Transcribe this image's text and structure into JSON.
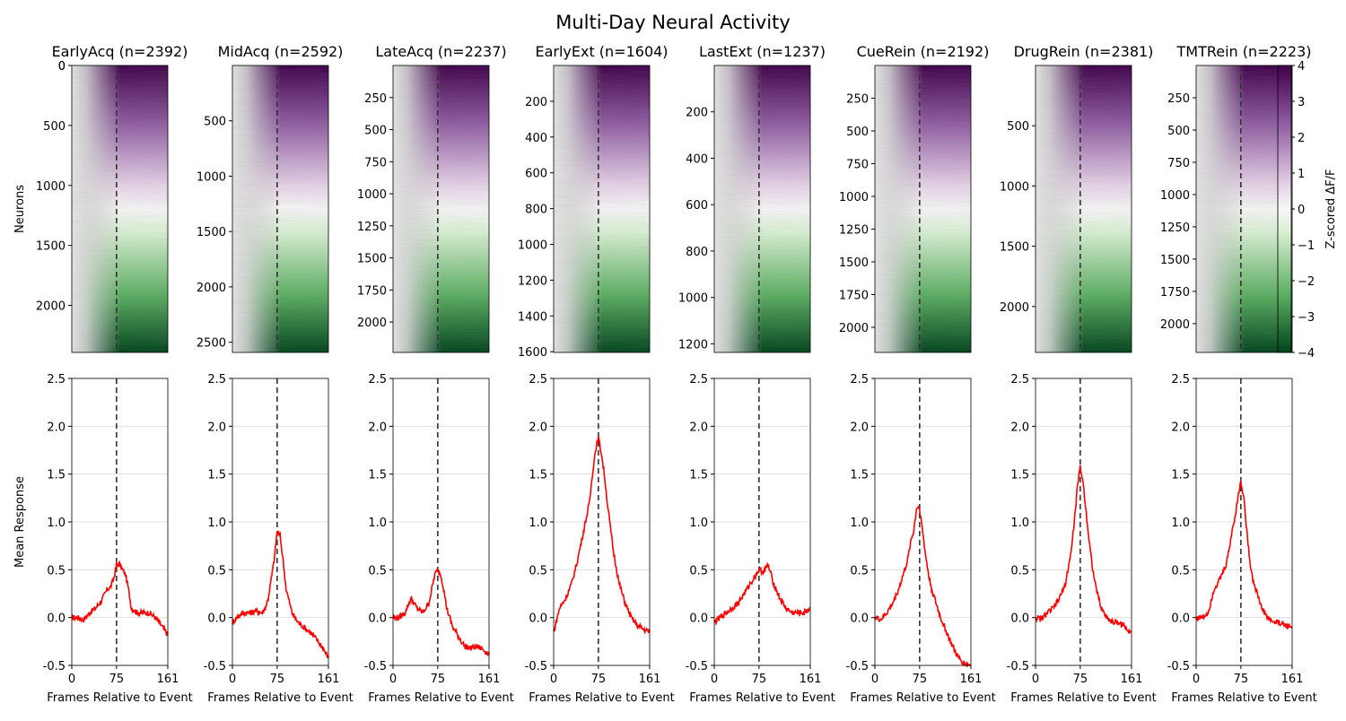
{
  "figure": {
    "title": "Multi-Day Neural Activity",
    "colorbar": {
      "label": "Z-scored ΔF/F",
      "ticks": [
        -4,
        -3,
        -2,
        -1,
        0,
        1,
        2,
        3,
        4
      ],
      "range": [
        -4,
        4
      ],
      "colormap": "PRGn"
    },
    "heatmap_ylabel": "Neurons",
    "line_ylabel": "Mean Response",
    "xlabel": "Frames Relative to Event",
    "line_color": "#ff0000",
    "event_line_color": "#333333"
  },
  "chart_data": [
    {
      "type": "heatmap",
      "title": "EarlyAcq (n=2392)",
      "n": 2392,
      "frames": [
        0,
        161
      ],
      "event_frame": 75,
      "yticks": [
        0,
        500,
        1000,
        1500,
        2000
      ]
    },
    {
      "type": "heatmap",
      "title": "MidAcq (n=2592)",
      "n": 2592,
      "frames": [
        0,
        161
      ],
      "event_frame": 75,
      "yticks": [
        500,
        1000,
        1500,
        2000,
        2500
      ]
    },
    {
      "type": "heatmap",
      "title": "LateAcq (n=2237)",
      "n": 2237,
      "frames": [
        0,
        161
      ],
      "event_frame": 75,
      "yticks": [
        250,
        500,
        750,
        1000,
        1250,
        1500,
        1750,
        2000
      ]
    },
    {
      "type": "heatmap",
      "title": "EarlyExt (n=1604)",
      "n": 1604,
      "frames": [
        0,
        161
      ],
      "event_frame": 75,
      "yticks": [
        200,
        400,
        600,
        800,
        1000,
        1200,
        1400,
        1600
      ]
    },
    {
      "type": "heatmap",
      "title": "LastExt (n=1237)",
      "n": 1237,
      "frames": [
        0,
        161
      ],
      "event_frame": 75,
      "yticks": [
        200,
        400,
        600,
        800,
        1000,
        1200
      ]
    },
    {
      "type": "heatmap",
      "title": "CueRein (n=2192)",
      "n": 2192,
      "frames": [
        0,
        161
      ],
      "event_frame": 75,
      "yticks": [
        250,
        500,
        750,
        1000,
        1250,
        1500,
        1750,
        2000
      ]
    },
    {
      "type": "heatmap",
      "title": "DrugRein (n=2381)",
      "n": 2381,
      "frames": [
        0,
        161
      ],
      "event_frame": 75,
      "yticks": [
        500,
        1000,
        1500,
        2000
      ]
    },
    {
      "type": "heatmap",
      "title": "TMTRein (n=2223)",
      "n": 2223,
      "frames": [
        0,
        161
      ],
      "event_frame": 75,
      "yticks": [
        250,
        500,
        750,
        1000,
        1250,
        1500,
        1750,
        2000
      ]
    },
    {
      "type": "line",
      "xlim": [
        0,
        161
      ],
      "ylim": [
        -0.5,
        2.5
      ],
      "xticks": [
        0,
        75,
        161
      ],
      "yticks": [
        -0.5,
        0.0,
        0.5,
        1.0,
        1.5,
        2.0,
        2.5
      ],
      "grid": "y",
      "event_frame": 75,
      "x": [
        0,
        10,
        20,
        30,
        40,
        50,
        60,
        65,
        70,
        75,
        80,
        85,
        90,
        95,
        100,
        110,
        120,
        130,
        140,
        150,
        161
      ],
      "y": [
        0.0,
        0.0,
        -0.02,
        0.05,
        0.1,
        0.18,
        0.3,
        0.32,
        0.4,
        0.55,
        0.56,
        0.5,
        0.45,
        0.3,
        0.1,
        0.05,
        0.05,
        0.05,
        0.0,
        -0.08,
        -0.18
      ]
    },
    {
      "type": "line",
      "xlim": [
        0,
        161
      ],
      "ylim": [
        -0.5,
        2.5
      ],
      "xticks": [
        0,
        75,
        161
      ],
      "yticks": [
        -0.5,
        0.0,
        0.5,
        1.0,
        1.5,
        2.0,
        2.5
      ],
      "grid": "y",
      "event_frame": 75,
      "x": [
        0,
        10,
        20,
        30,
        40,
        50,
        55,
        60,
        65,
        70,
        75,
        80,
        85,
        90,
        100,
        110,
        120,
        130,
        140,
        150,
        161
      ],
      "y": [
        -0.05,
        0.02,
        0.05,
        0.05,
        0.07,
        0.05,
        0.1,
        0.2,
        0.4,
        0.6,
        0.9,
        0.85,
        0.6,
        0.3,
        0.05,
        -0.05,
        -0.1,
        -0.15,
        -0.22,
        -0.3,
        -0.42
      ]
    },
    {
      "type": "line",
      "xlim": [
        0,
        161
      ],
      "ylim": [
        -0.5,
        2.5
      ],
      "xticks": [
        0,
        75,
        161
      ],
      "yticks": [
        -0.5,
        0.0,
        0.5,
        1.0,
        1.5,
        2.0,
        2.5
      ],
      "grid": "y",
      "event_frame": 75,
      "x": [
        0,
        10,
        20,
        30,
        35,
        40,
        50,
        60,
        65,
        70,
        75,
        80,
        85,
        90,
        100,
        110,
        120,
        130,
        140,
        150,
        161
      ],
      "y": [
        0.0,
        0.0,
        0.05,
        0.2,
        0.15,
        0.1,
        0.05,
        0.15,
        0.3,
        0.45,
        0.5,
        0.45,
        0.3,
        0.1,
        -0.1,
        -0.2,
        -0.3,
        -0.32,
        -0.3,
        -0.33,
        -0.38
      ]
    },
    {
      "type": "line",
      "xlim": [
        0,
        161
      ],
      "ylim": [
        -0.5,
        2.5
      ],
      "xticks": [
        0,
        75,
        161
      ],
      "yticks": [
        -0.5,
        0.0,
        0.5,
        1.0,
        1.5,
        2.0,
        2.5
      ],
      "grid": "y",
      "event_frame": 75,
      "x": [
        0,
        10,
        20,
        30,
        40,
        50,
        60,
        65,
        70,
        75,
        80,
        85,
        90,
        95,
        100,
        110,
        120,
        130,
        140,
        150,
        161
      ],
      "y": [
        -0.15,
        0.1,
        0.2,
        0.35,
        0.6,
        0.9,
        1.2,
        1.5,
        1.75,
        1.88,
        1.72,
        1.5,
        1.2,
        0.95,
        0.7,
        0.35,
        0.15,
        0.0,
        -0.08,
        -0.12,
        -0.15
      ]
    },
    {
      "type": "line",
      "xlim": [
        0,
        161
      ],
      "ylim": [
        -0.5,
        2.5
      ],
      "xticks": [
        0,
        75,
        161
      ],
      "yticks": [
        -0.5,
        0.0,
        0.5,
        1.0,
        1.5,
        2.0,
        2.5
      ],
      "grid": "y",
      "event_frame": 75,
      "x": [
        0,
        10,
        20,
        30,
        40,
        50,
        60,
        65,
        70,
        75,
        80,
        85,
        90,
        95,
        100,
        110,
        120,
        130,
        140,
        150,
        161
      ],
      "y": [
        -0.05,
        0.0,
        0.05,
        0.1,
        0.15,
        0.25,
        0.35,
        0.4,
        0.45,
        0.5,
        0.48,
        0.5,
        0.55,
        0.45,
        0.35,
        0.2,
        0.1,
        0.05,
        0.05,
        0.05,
        0.1
      ]
    },
    {
      "type": "line",
      "xlim": [
        0,
        161
      ],
      "ylim": [
        -0.5,
        2.5
      ],
      "xticks": [
        0,
        75,
        161
      ],
      "yticks": [
        -0.5,
        0.0,
        0.5,
        1.0,
        1.5,
        2.0,
        2.5
      ],
      "grid": "y",
      "event_frame": 75,
      "x": [
        0,
        10,
        20,
        30,
        40,
        50,
        55,
        60,
        65,
        70,
        75,
        80,
        85,
        90,
        95,
        100,
        110,
        120,
        130,
        140,
        150,
        161
      ],
      "y": [
        0.0,
        -0.02,
        0.05,
        0.15,
        0.3,
        0.5,
        0.6,
        0.8,
        0.9,
        1.15,
        1.15,
        0.9,
        0.65,
        0.45,
        0.3,
        0.2,
        0.0,
        -0.15,
        -0.3,
        -0.42,
        -0.48,
        -0.5
      ]
    },
    {
      "type": "line",
      "xlim": [
        0,
        161
      ],
      "ylim": [
        -0.5,
        2.5
      ],
      "xticks": [
        0,
        75,
        161
      ],
      "yticks": [
        -0.5,
        0.0,
        0.5,
        1.0,
        1.5,
        2.0,
        2.5
      ],
      "grid": "y",
      "event_frame": 75,
      "x": [
        0,
        10,
        20,
        30,
        40,
        50,
        60,
        65,
        70,
        75,
        80,
        85,
        90,
        95,
        100,
        110,
        120,
        130,
        140,
        150,
        161
      ],
      "y": [
        0.0,
        -0.02,
        0.05,
        0.1,
        0.2,
        0.35,
        0.7,
        1.0,
        1.35,
        1.58,
        1.4,
        1.1,
        0.8,
        0.55,
        0.35,
        0.1,
        0.0,
        -0.05,
        -0.05,
        -0.1,
        -0.15
      ]
    },
    {
      "type": "line",
      "xlim": [
        0,
        161
      ],
      "ylim": [
        -0.5,
        2.5
      ],
      "xticks": [
        0,
        75,
        161
      ],
      "yticks": [
        -0.5,
        0.0,
        0.5,
        1.0,
        1.5,
        2.0,
        2.5
      ],
      "grid": "y",
      "event_frame": 75,
      "x": [
        0,
        10,
        20,
        30,
        40,
        50,
        55,
        60,
        65,
        70,
        75,
        80,
        85,
        90,
        95,
        100,
        110,
        120,
        130,
        140,
        150,
        161
      ],
      "y": [
        0.0,
        0.0,
        0.05,
        0.3,
        0.4,
        0.55,
        0.7,
        0.9,
        1.05,
        1.25,
        1.43,
        1.25,
        0.9,
        0.6,
        0.4,
        0.3,
        0.1,
        0.0,
        -0.05,
        -0.05,
        -0.08,
        -0.1
      ]
    }
  ]
}
